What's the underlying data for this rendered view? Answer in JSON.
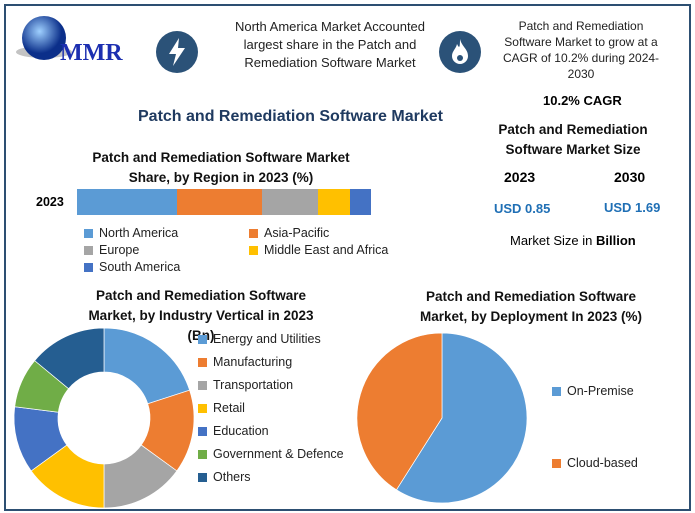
{
  "logo": {
    "text": "MMR"
  },
  "header": {
    "fact1": "North America Market Accounted largest share in the Patch and Remediation Software Market",
    "fact2": "Patch and Remediation Software Market to grow at a CAGR of 10.2% during 2024-2030",
    "icon1": "lightning-icon",
    "icon2": "flame-icon"
  },
  "main_title": "Patch and Remediation Software Market",
  "market_size": {
    "cagr": "10.2% CAGR",
    "title": "Patch and Remediation Software Market Size",
    "year1": "2023",
    "year2": "2030",
    "value1": "USD 0.85",
    "value2": "USD 1.69",
    "unit_note_prefix": "Market Size in ",
    "unit_note_bold": "Billion"
  },
  "chart_data": [
    {
      "type": "bar",
      "title": "Patch and Remediation Software Market Share, by Region in 2023 (%)",
      "categories": [
        "2023"
      ],
      "stacked": true,
      "orientation": "horizontal",
      "series": [
        {
          "name": "North America",
          "values": [
            34
          ],
          "color": "#5b9bd5"
        },
        {
          "name": "Asia-Pacific",
          "values": [
            29
          ],
          "color": "#ed7d31"
        },
        {
          "name": "Europe",
          "values": [
            19
          ],
          "color": "#a5a5a5"
        },
        {
          "name": "Middle East and Africa",
          "values": [
            11
          ],
          "color": "#ffc000"
        },
        {
          "name": "South America",
          "values": [
            7
          ],
          "color": "#4472c4"
        }
      ]
    },
    {
      "type": "pie",
      "donut": true,
      "title": "Patch and Remediation Software Market, by Industry Vertical in 2023 (Bn)",
      "labels": [
        "Energy and Utilities",
        "Manufacturing",
        "Transportation",
        "Retail",
        "Education",
        "Government & Defence",
        "Others"
      ],
      "values": [
        20,
        15,
        15,
        15,
        12,
        9,
        14
      ],
      "colors": [
        "#5b9bd5",
        "#ed7d31",
        "#a5a5a5",
        "#ffc000",
        "#4472c4",
        "#70ad47",
        "#255e91"
      ]
    },
    {
      "type": "pie",
      "title": "Patch and Remediation Software Market, by Deployment In 2023 (%)",
      "labels": [
        "On-Premise",
        "Cloud-based"
      ],
      "values": [
        59,
        41
      ],
      "colors": [
        "#5b9bd5",
        "#ed7d31"
      ]
    }
  ]
}
